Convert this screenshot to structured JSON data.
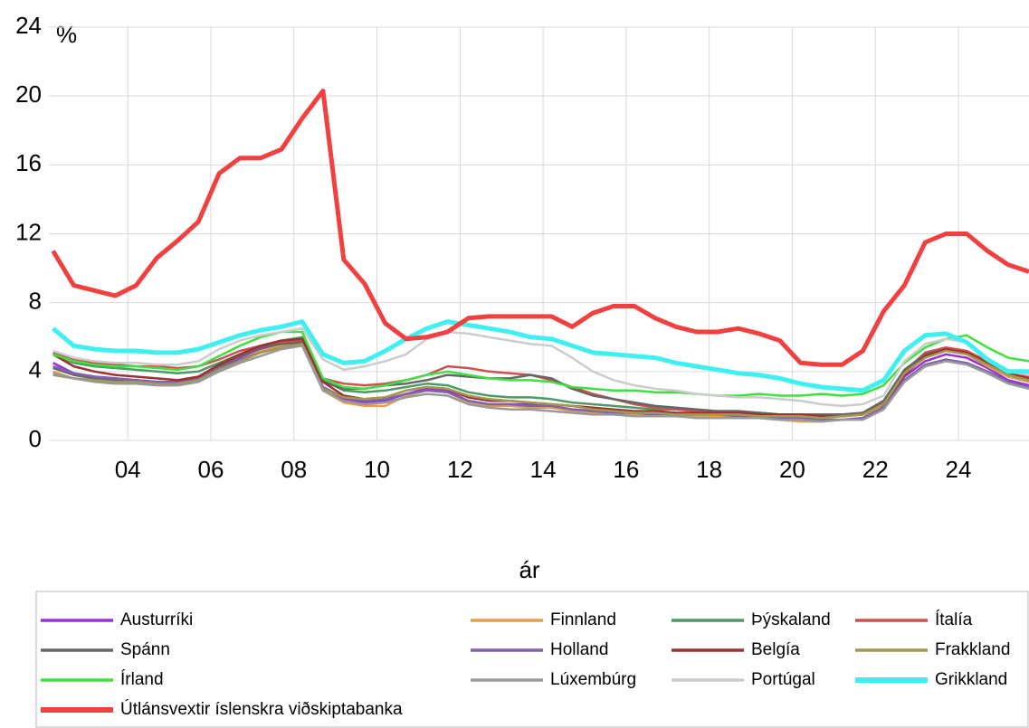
{
  "chart_data": {
    "type": "line",
    "y_label": "%",
    "x_label": "ár",
    "xlim": [
      2002.1,
      2025.7
    ],
    "ylim": [
      0,
      24
    ],
    "yticks": [
      0,
      4,
      8,
      12,
      16,
      20,
      24
    ],
    "xticks": [
      {
        "value": 2004,
        "label": "04"
      },
      {
        "value": 2006,
        "label": "06"
      },
      {
        "value": 2008,
        "label": "08"
      },
      {
        "value": 2010,
        "label": "10"
      },
      {
        "value": 2012,
        "label": "12"
      },
      {
        "value": 2014,
        "label": "14"
      },
      {
        "value": 2016,
        "label": "16"
      },
      {
        "value": 2018,
        "label": "18"
      },
      {
        "value": 2020,
        "label": "20"
      },
      {
        "value": 2022,
        "label": "22"
      },
      {
        "value": 2024,
        "label": "24"
      }
    ],
    "grid": true,
    "x": [
      2002.2,
      2002.7,
      2003.2,
      2003.7,
      2004.2,
      2004.7,
      2005.2,
      2005.7,
      2006.2,
      2006.7,
      2007.2,
      2007.7,
      2008.2,
      2008.7,
      2009.2,
      2009.7,
      2010.2,
      2010.7,
      2011.2,
      2011.7,
      2012.2,
      2012.7,
      2013.2,
      2013.7,
      2014.2,
      2014.7,
      2015.2,
      2015.7,
      2016.2,
      2016.7,
      2017.2,
      2017.7,
      2018.2,
      2018.7,
      2019.2,
      2019.7,
      2020.2,
      2020.7,
      2021.2,
      2021.7,
      2022.2,
      2022.7,
      2023.2,
      2023.7,
      2024.2,
      2024.7,
      2025.2,
      2025.7
    ],
    "series": [
      {
        "name": "Austurríki",
        "color": "#9b30d9",
        "line_width": 2.5,
        "values": [
          4.5,
          3.9,
          3.7,
          3.6,
          3.5,
          3.4,
          3.3,
          3.5,
          4.2,
          4.8,
          5.3,
          5.6,
          5.9,
          3.1,
          2.4,
          2.2,
          2.3,
          2.7,
          3.0,
          2.9,
          2.3,
          2.1,
          2.1,
          2.1,
          2.0,
          1.8,
          1.7,
          1.6,
          1.5,
          1.5,
          1.5,
          1.4,
          1.5,
          1.5,
          1.4,
          1.3,
          1.4,
          1.2,
          1.2,
          1.3,
          2.0,
          3.7,
          4.6,
          5.0,
          4.8,
          4.2,
          3.5,
          3.2
        ]
      },
      {
        "name": "Finnland",
        "color": "#e0a050",
        "line_width": 2.5,
        "values": [
          4.0,
          3.6,
          3.5,
          3.4,
          3.4,
          3.3,
          3.2,
          3.4,
          4.1,
          4.7,
          5.2,
          5.5,
          5.7,
          2.9,
          2.2,
          2.0,
          2.0,
          2.6,
          2.9,
          2.8,
          2.2,
          2.0,
          2.0,
          1.9,
          1.9,
          1.7,
          1.6,
          1.5,
          1.5,
          1.5,
          1.4,
          1.4,
          1.4,
          1.4,
          1.3,
          1.2,
          1.1,
          1.1,
          1.2,
          1.3,
          2.1,
          3.9,
          4.9,
          5.3,
          5.0,
          4.3,
          3.7,
          3.4
        ]
      },
      {
        "name": "Þýskaland",
        "color": "#4e9a66",
        "line_width": 2.5,
        "values": [
          5.0,
          4.5,
          4.3,
          4.2,
          4.1,
          4.0,
          3.9,
          4.0,
          4.5,
          5.0,
          5.5,
          5.8,
          6.0,
          3.5,
          2.9,
          2.8,
          2.9,
          3.1,
          3.3,
          3.2,
          2.8,
          2.6,
          2.5,
          2.5,
          2.4,
          2.2,
          2.1,
          2.0,
          1.9,
          1.8,
          1.8,
          1.7,
          1.7,
          1.7,
          1.6,
          1.5,
          1.5,
          1.5,
          1.5,
          1.6,
          2.3,
          4.0,
          5.0,
          5.3,
          5.1,
          4.5,
          3.9,
          3.6
        ]
      },
      {
        "name": "Ítalía",
        "color": "#d05050",
        "line_width": 2.5,
        "values": [
          5.1,
          4.7,
          4.5,
          4.4,
          4.3,
          4.3,
          4.2,
          4.3,
          4.7,
          5.2,
          5.5,
          5.7,
          5.8,
          3.6,
          3.3,
          3.2,
          3.3,
          3.5,
          3.8,
          4.3,
          4.2,
          4.0,
          3.9,
          3.8,
          3.5,
          3.1,
          2.7,
          2.4,
          2.1,
          1.9,
          1.8,
          1.7,
          1.6,
          1.6,
          1.6,
          1.5,
          1.4,
          1.4,
          1.4,
          1.5,
          2.2,
          4.0,
          5.1,
          5.4,
          5.2,
          4.6,
          4.0,
          3.7
        ]
      },
      {
        "name": "Spánn",
        "color": "#666666",
        "line_width": 2.5,
        "values": [
          4.2,
          3.8,
          3.6,
          3.5,
          3.5,
          3.4,
          3.4,
          3.6,
          4.3,
          4.9,
          5.4,
          5.6,
          5.7,
          3.4,
          3.0,
          3.0,
          3.2,
          3.3,
          3.5,
          3.8,
          3.7,
          3.6,
          3.6,
          3.8,
          3.6,
          3.0,
          2.6,
          2.4,
          2.2,
          2.0,
          1.9,
          1.8,
          1.7,
          1.7,
          1.6,
          1.5,
          1.5,
          1.5,
          1.5,
          1.6,
          2.3,
          4.1,
          5.0,
          5.3,
          5.1,
          4.5,
          3.8,
          3.5
        ]
      },
      {
        "name": "Holland",
        "color": "#8060b0",
        "line_width": 2.5,
        "values": [
          4.3,
          3.9,
          3.7,
          3.6,
          3.5,
          3.4,
          3.4,
          3.6,
          4.2,
          4.7,
          5.1,
          5.4,
          5.6,
          3.1,
          2.5,
          2.3,
          2.4,
          2.7,
          2.9,
          2.8,
          2.3,
          2.1,
          2.1,
          2.0,
          2.0,
          1.8,
          1.7,
          1.6,
          1.6,
          1.5,
          1.5,
          1.5,
          1.5,
          1.4,
          1.4,
          1.3,
          1.3,
          1.2,
          1.2,
          1.3,
          1.9,
          3.5,
          4.4,
          4.7,
          4.5,
          4.0,
          3.4,
          3.1
        ]
      },
      {
        "name": "Belgía",
        "color": "#a03030",
        "line_width": 2.5,
        "values": [
          5.0,
          4.3,
          4.0,
          3.8,
          3.7,
          3.6,
          3.5,
          3.7,
          4.4,
          5.0,
          5.5,
          5.8,
          5.9,
          3.4,
          2.6,
          2.4,
          2.5,
          2.9,
          3.1,
          3.0,
          2.5,
          2.3,
          2.3,
          2.2,
          2.1,
          2.0,
          1.9,
          1.8,
          1.7,
          1.7,
          1.6,
          1.6,
          1.6,
          1.6,
          1.5,
          1.5,
          1.5,
          1.4,
          1.4,
          1.5,
          2.1,
          3.8,
          4.9,
          5.3,
          5.1,
          4.5,
          3.9,
          3.6
        ]
      },
      {
        "name": "Frakkland",
        "color": "#a09a50",
        "line_width": 2.5,
        "values": [
          3.8,
          3.6,
          3.5,
          3.4,
          3.4,
          3.3,
          3.3,
          3.5,
          4.1,
          4.6,
          5.1,
          5.4,
          5.6,
          3.0,
          2.5,
          2.4,
          2.5,
          2.9,
          3.1,
          3.0,
          2.6,
          2.4,
          2.3,
          2.2,
          2.1,
          2.0,
          1.8,
          1.7,
          1.6,
          1.6,
          1.5,
          1.5,
          1.5,
          1.5,
          1.4,
          1.4,
          1.4,
          1.3,
          1.4,
          1.5,
          2.1,
          3.9,
          4.8,
          5.2,
          5.0,
          4.4,
          3.8,
          3.5
        ]
      },
      {
        "name": "Írland",
        "color": "#40e040",
        "line_width": 2.5,
        "values": [
          5.0,
          4.6,
          4.4,
          4.3,
          4.3,
          4.2,
          4.1,
          4.3,
          4.9,
          5.5,
          6.0,
          6.3,
          6.3,
          3.6,
          3.1,
          3.0,
          3.2,
          3.5,
          3.8,
          4.0,
          3.8,
          3.6,
          3.5,
          3.5,
          3.4,
          3.1,
          3.0,
          2.9,
          2.9,
          2.8,
          2.8,
          2.7,
          2.6,
          2.6,
          2.7,
          2.6,
          2.6,
          2.7,
          2.6,
          2.7,
          3.2,
          4.5,
          5.4,
          5.9,
          6.1,
          5.4,
          4.8,
          4.6
        ]
      },
      {
        "name": "Lúxembúrg",
        "color": "#999999",
        "line_width": 2.5,
        "values": [
          3.9,
          3.6,
          3.4,
          3.3,
          3.3,
          3.2,
          3.2,
          3.4,
          4.0,
          4.5,
          4.9,
          5.3,
          5.5,
          2.9,
          2.3,
          2.1,
          2.2,
          2.5,
          2.7,
          2.6,
          2.1,
          1.9,
          1.8,
          1.8,
          1.7,
          1.6,
          1.5,
          1.5,
          1.4,
          1.4,
          1.4,
          1.3,
          1.3,
          1.3,
          1.3,
          1.2,
          1.2,
          1.1,
          1.2,
          1.2,
          1.8,
          3.4,
          4.3,
          4.6,
          4.4,
          3.9,
          3.3,
          3.0
        ]
      },
      {
        "name": "Portúgal",
        "color": "#cccccc",
        "line_width": 2.5,
        "values": [
          5.2,
          4.8,
          4.6,
          4.5,
          4.5,
          4.4,
          4.4,
          4.6,
          5.3,
          5.8,
          6.1,
          6.3,
          6.5,
          4.7,
          4.1,
          4.3,
          4.6,
          5.0,
          5.9,
          6.3,
          6.2,
          6.0,
          5.8,
          5.6,
          5.5,
          4.8,
          4.0,
          3.5,
          3.2,
          3.0,
          2.9,
          2.7,
          2.6,
          2.5,
          2.5,
          2.4,
          2.3,
          2.1,
          2.0,
          2.1,
          2.6,
          4.6,
          5.6,
          5.9,
          5.7,
          4.8,
          4.0,
          3.8
        ]
      },
      {
        "name": "Grikkland",
        "color": "#40f0f0",
        "line_width": 5,
        "values": [
          6.5,
          5.5,
          5.3,
          5.2,
          5.2,
          5.1,
          5.1,
          5.3,
          5.7,
          6.1,
          6.4,
          6.6,
          6.9,
          5.0,
          4.5,
          4.6,
          5.2,
          5.9,
          6.5,
          6.9,
          6.7,
          6.5,
          6.3,
          6.0,
          5.9,
          5.5,
          5.1,
          5.0,
          4.9,
          4.8,
          4.5,
          4.3,
          4.1,
          3.9,
          3.8,
          3.6,
          3.3,
          3.1,
          3.0,
          2.9,
          3.5,
          5.2,
          6.1,
          6.2,
          5.7,
          4.7,
          4.0,
          4.0
        ]
      },
      {
        "name": "Útlánsvextir íslenskra viðskiptabanka",
        "color": "#f04040",
        "line_width": 5,
        "values": [
          11,
          9,
          8.7,
          8.4,
          9,
          10.6,
          11.6,
          12.7,
          15.5,
          16.4,
          16.4,
          16.9,
          18.7,
          20.3,
          10.5,
          9.1,
          6.8,
          5.9,
          6,
          6.3,
          7.1,
          7.2,
          7.2,
          7.2,
          7.2,
          6.6,
          7.4,
          7.8,
          7.8,
          7.1,
          6.6,
          6.3,
          6.3,
          6.5,
          6.2,
          5.8,
          4.5,
          4.4,
          4.4,
          5.2,
          7.5,
          9,
          11.5,
          12,
          12,
          11,
          10.2,
          9.8
        ]
      }
    ]
  }
}
